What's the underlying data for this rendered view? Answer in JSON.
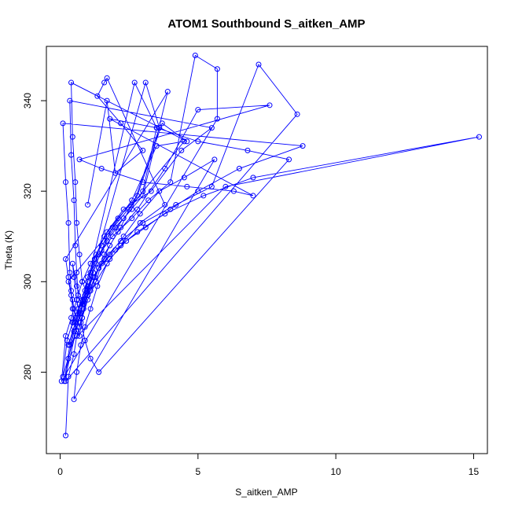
{
  "chart_data": {
    "type": "line",
    "title": "ATOM1 Southbound S_aitken_AMP",
    "xlabel": "S_aitken_AMP",
    "ylabel": "Theta (K)",
    "xlim": [
      -0.5,
      15.5
    ],
    "ylim": [
      262,
      352
    ],
    "xticks": [
      0,
      5,
      10,
      15
    ],
    "yticks": [
      280,
      300,
      320,
      340
    ],
    "grid": false,
    "legend": "none",
    "series_color": "#0000ff",
    "points": [
      [
        0.2,
        266
      ],
      [
        0.3,
        279
      ],
      [
        0.5,
        284
      ],
      [
        0.6,
        288
      ],
      [
        0.8,
        292
      ],
      [
        1.0,
        296
      ],
      [
        1.3,
        300
      ],
      [
        1.5,
        304
      ],
      [
        1.8,
        308
      ],
      [
        2.2,
        312
      ],
      [
        2.5,
        316
      ],
      [
        3.0,
        320
      ],
      [
        3.5,
        334
      ],
      [
        2.7,
        344
      ],
      [
        0.15,
        278
      ],
      [
        0.35,
        286
      ],
      [
        0.55,
        291
      ],
      [
        0.7,
        295
      ],
      [
        0.9,
        298
      ],
      [
        1.1,
        302
      ],
      [
        1.4,
        306
      ],
      [
        1.9,
        310
      ],
      [
        2.6,
        314
      ],
      [
        3.2,
        318
      ],
      [
        4.0,
        322
      ],
      [
        4.9,
        350
      ],
      [
        5.7,
        347
      ],
      [
        5.7,
        336
      ],
      [
        0.05,
        278
      ],
      [
        0.2,
        288
      ],
      [
        0.4,
        292
      ],
      [
        0.6,
        296
      ],
      [
        0.8,
        300
      ],
      [
        1.1,
        304
      ],
      [
        1.5,
        308
      ],
      [
        2.0,
        312
      ],
      [
        2.6,
        316
      ],
      [
        3.6,
        334
      ],
      [
        3.1,
        344
      ],
      [
        0.1,
        279
      ],
      [
        0.25,
        287
      ],
      [
        0.45,
        291
      ],
      [
        0.65,
        294
      ],
      [
        0.9,
        297
      ],
      [
        1.2,
        301
      ],
      [
        1.6,
        305
      ],
      [
        2.2,
        309
      ],
      [
        3.0,
        313
      ],
      [
        4.2,
        317
      ],
      [
        5.5,
        321
      ],
      [
        7.2,
        348
      ],
      [
        8.6,
        337
      ],
      [
        0.2,
        278
      ],
      [
        0.3,
        283
      ],
      [
        0.5,
        289
      ],
      [
        0.75,
        293
      ],
      [
        1.0,
        299
      ],
      [
        1.4,
        303
      ],
      [
        2.0,
        307
      ],
      [
        2.8,
        311
      ],
      [
        3.8,
        315
      ],
      [
        5.2,
        319
      ],
      [
        7.0,
        323
      ],
      [
        15.2,
        332
      ],
      [
        6.0,
        321
      ],
      [
        0.3,
        286
      ],
      [
        0.5,
        290
      ],
      [
        0.7,
        293
      ],
      [
        1.0,
        297
      ],
      [
        1.3,
        300
      ],
      [
        1.8,
        305
      ],
      [
        2.4,
        309
      ],
      [
        3.1,
        312
      ],
      [
        4.0,
        316
      ],
      [
        5.0,
        320
      ],
      [
        6.5,
        325
      ],
      [
        8.8,
        330
      ],
      [
        0.1,
        335
      ],
      [
        0.2,
        322
      ],
      [
        0.3,
        313
      ],
      [
        0.35,
        302
      ],
      [
        0.4,
        298
      ],
      [
        0.45,
        294
      ],
      [
        0.5,
        291
      ],
      [
        0.6,
        289
      ],
      [
        0.7,
        288
      ],
      [
        0.8,
        292
      ],
      [
        1.0,
        297
      ],
      [
        1.2,
        302
      ],
      [
        1.5,
        307
      ],
      [
        1.9,
        312
      ],
      [
        2.6,
        318
      ],
      [
        3.5,
        330
      ],
      [
        4.5,
        331
      ],
      [
        0.3,
        300
      ],
      [
        0.45,
        296
      ],
      [
        0.55,
        292
      ],
      [
        0.7,
        290
      ],
      [
        0.85,
        294
      ],
      [
        1.05,
        299
      ],
      [
        1.3,
        304
      ],
      [
        1.7,
        309
      ],
      [
        2.3,
        314
      ],
      [
        3.0,
        319
      ],
      [
        3.9,
        342
      ],
      [
        0.2,
        305
      ],
      [
        0.3,
        301
      ],
      [
        0.4,
        297
      ],
      [
        0.5,
        294
      ],
      [
        0.6,
        292
      ],
      [
        0.8,
        296
      ],
      [
        1.0,
        301
      ],
      [
        1.3,
        306
      ],
      [
        1.7,
        311
      ],
      [
        2.3,
        316
      ],
      [
        3.3,
        320
      ],
      [
        4.4,
        329
      ],
      [
        5.5,
        334
      ],
      [
        0.35,
        340
      ],
      [
        0.4,
        328
      ],
      [
        0.5,
        318
      ],
      [
        0.55,
        308
      ],
      [
        0.6,
        302
      ],
      [
        0.65,
        297
      ],
      [
        0.8,
        295
      ],
      [
        1.0,
        300
      ],
      [
        1.25,
        305
      ],
      [
        1.6,
        310
      ],
      [
        2.1,
        314
      ],
      [
        2.8,
        319
      ],
      [
        3.7,
        335
      ],
      [
        4.6,
        331
      ],
      [
        0.4,
        344
      ],
      [
        0.45,
        332
      ],
      [
        0.55,
        322
      ],
      [
        0.6,
        313
      ],
      [
        0.7,
        306
      ],
      [
        0.8,
        300
      ],
      [
        1.0,
        297
      ],
      [
        1.25,
        301
      ],
      [
        1.6,
        306
      ],
      [
        2.1,
        311
      ],
      [
        2.8,
        316
      ],
      [
        3.8,
        325
      ],
      [
        5.0,
        338
      ],
      [
        7.6,
        339
      ],
      [
        0.7,
        327
      ],
      [
        1.5,
        325
      ],
      [
        3.0,
        322
      ],
      [
        4.6,
        321
      ],
      [
        6.3,
        320
      ],
      [
        7.0,
        319
      ],
      [
        1.8,
        336
      ],
      [
        3.5,
        334
      ],
      [
        5.0,
        331
      ],
      [
        6.8,
        329
      ],
      [
        8.3,
        327
      ],
      [
        1.4,
        280
      ],
      [
        1.1,
        283
      ],
      [
        0.9,
        287
      ],
      [
        0.75,
        291
      ],
      [
        0.6,
        296
      ],
      [
        0.5,
        301
      ],
      [
        0.45,
        304
      ],
      [
        0.6,
        299
      ],
      [
        0.85,
        295
      ],
      [
        1.1,
        298
      ],
      [
        1.4,
        303
      ],
      [
        1.8,
        306
      ],
      [
        2.3,
        310
      ],
      [
        2.9,
        315
      ],
      [
        3.6,
        320
      ],
      [
        4.5,
        323
      ],
      [
        5.6,
        327
      ],
      [
        0.5,
        274
      ],
      [
        0.6,
        280
      ],
      [
        0.75,
        286
      ],
      [
        0.9,
        290
      ],
      [
        1.1,
        294
      ],
      [
        1.35,
        299
      ],
      [
        1.7,
        304
      ],
      [
        2.2,
        308
      ],
      [
        2.9,
        313
      ],
      [
        3.8,
        317
      ],
      [
        1.7,
        345
      ],
      [
        1.6,
        344
      ],
      [
        1.35,
        341
      ],
      [
        2.2,
        335
      ],
      [
        3.0,
        329
      ],
      [
        2.0,
        324
      ],
      [
        1.7,
        340
      ],
      [
        1.0,
        317
      ]
    ]
  }
}
